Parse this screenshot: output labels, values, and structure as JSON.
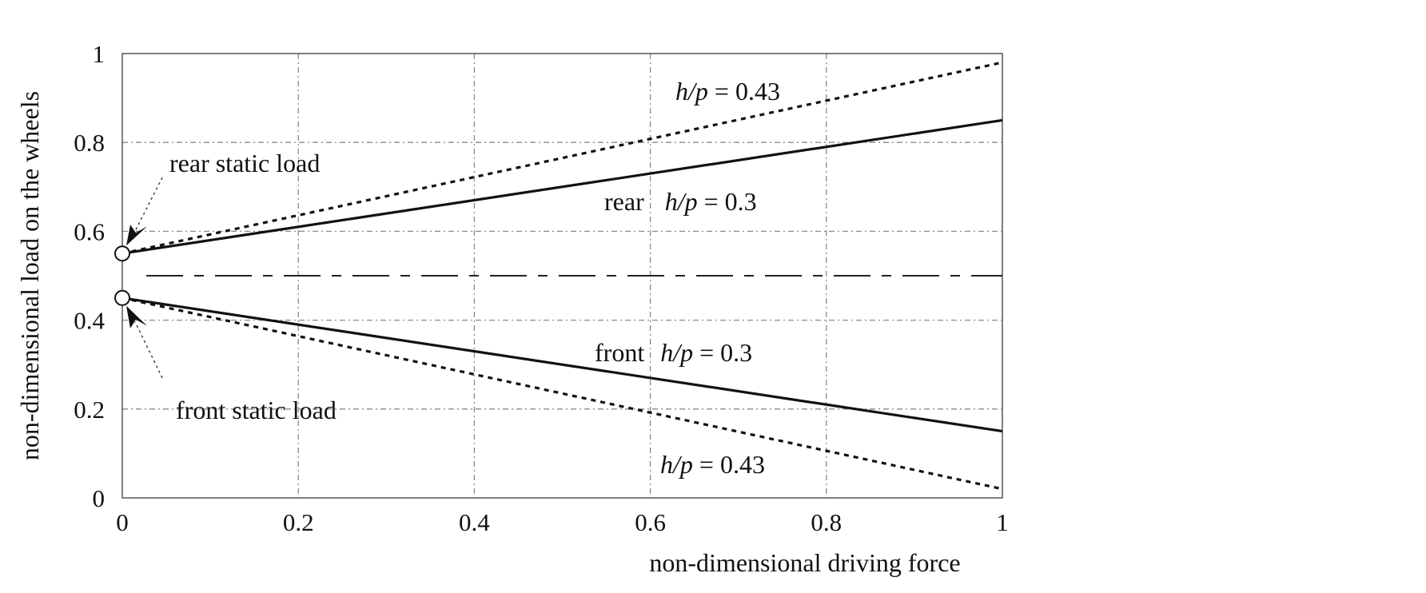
{
  "chart_data": {
    "type": "line",
    "xlabel": "non-dimensional driving force",
    "ylabel": "non-dimensional load on the wheels",
    "xlim": [
      0,
      1
    ],
    "ylim": [
      0,
      1
    ],
    "xticks": [
      0,
      0.2,
      0.4,
      0.6,
      0.8,
      1
    ],
    "xtick_labels": [
      "0",
      "0.2",
      "0.4",
      "0.6",
      "0.8",
      "1"
    ],
    "yticks": [
      0,
      0.2,
      0.4,
      0.6,
      0.8,
      1
    ],
    "ytick_labels": [
      "0",
      "0.2",
      "0.4",
      "0.6",
      "0.8",
      "1"
    ],
    "grid": true,
    "series": [
      {
        "name": "rear h/p = 0.43",
        "style": "dotted",
        "x": [
          0,
          1
        ],
        "y": [
          0.55,
          0.98
        ]
      },
      {
        "name": "rear h/p = 0.3",
        "style": "solid",
        "x": [
          0,
          1
        ],
        "y": [
          0.55,
          0.85
        ]
      },
      {
        "name": "front h/p = 0.3",
        "style": "solid",
        "x": [
          0,
          1
        ],
        "y": [
          0.45,
          0.15
        ]
      },
      {
        "name": "front h/p = 0.43",
        "style": "dotted",
        "x": [
          0,
          1
        ],
        "y": [
          0.45,
          0.02
        ]
      }
    ],
    "reference_line": {
      "style": "dash-dot",
      "y": 0.5
    },
    "static_points": [
      {
        "label": "rear static load",
        "x": 0,
        "y": 0.55
      },
      {
        "label": "front static load",
        "x": 0,
        "y": 0.45
      }
    ],
    "annotations": {
      "rear_043": {
        "prefix": "",
        "var": "h/p",
        "value": " = 0.43"
      },
      "rear_03": {
        "prefix": "rear",
        "var": "h/p",
        "value": " = 0.3"
      },
      "front_03": {
        "prefix": "front",
        "var": "h/p",
        "value": " = 0.3"
      },
      "front_043": {
        "prefix": "",
        "var": "h/p",
        "value": " = 0.43"
      }
    }
  }
}
